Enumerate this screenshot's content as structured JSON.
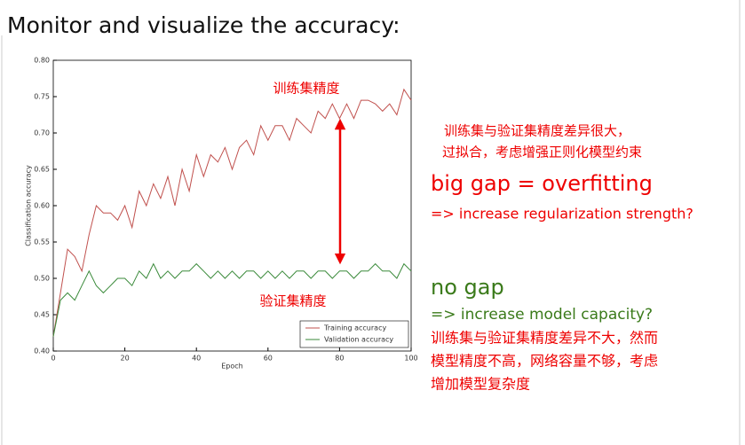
{
  "slide": {
    "title": "Monitor and visualize the accuracy:",
    "overfit": {
      "note_lines": [
        "训练集与验证集精度差异很大，",
        "过拟合，考虑增强正则化模型约束"
      ],
      "heading": "big gap = overfitting",
      "action": "=> increase regularization strength?"
    },
    "nogap": {
      "heading": "no gap",
      "action": "=> increase model capacity?",
      "note_lines": [
        "训练集与验证集精度差异不大，然而",
        "模型精度不高，网络容量不够，考虑",
        "增加模型复杂度"
      ]
    }
  },
  "chart_data": {
    "type": "line",
    "x_label": "Epoch",
    "y_label": "Classification accuracy",
    "annotations": [
      "训练集精度",
      "验证集精度"
    ],
    "x": [
      0,
      2,
      4,
      6,
      8,
      10,
      12,
      14,
      16,
      18,
      20,
      22,
      24,
      26,
      28,
      30,
      32,
      34,
      36,
      38,
      40,
      42,
      44,
      46,
      48,
      50,
      52,
      54,
      56,
      58,
      60,
      62,
      64,
      66,
      68,
      70,
      72,
      74,
      76,
      78,
      80,
      82,
      84,
      86,
      88,
      90,
      92,
      94,
      96,
      98,
      100
    ],
    "series": [
      {
        "name": "Training accuracy",
        "color": "#c0504d",
        "values": [
          0.42,
          0.48,
          0.54,
          0.53,
          0.51,
          0.56,
          0.6,
          0.59,
          0.59,
          0.58,
          0.6,
          0.57,
          0.62,
          0.6,
          0.63,
          0.61,
          0.64,
          0.6,
          0.65,
          0.62,
          0.67,
          0.64,
          0.67,
          0.66,
          0.68,
          0.65,
          0.68,
          0.69,
          0.67,
          0.71,
          0.69,
          0.71,
          0.71,
          0.69,
          0.72,
          0.71,
          0.7,
          0.73,
          0.72,
          0.74,
          0.72,
          0.74,
          0.72,
          0.745,
          0.745,
          0.74,
          0.73,
          0.74,
          0.725,
          0.76,
          0.745
        ]
      },
      {
        "name": "Validation accuracy",
        "color": "#3a8a3a",
        "values": [
          0.42,
          0.47,
          0.48,
          0.47,
          0.49,
          0.51,
          0.49,
          0.48,
          0.49,
          0.5,
          0.5,
          0.49,
          0.51,
          0.5,
          0.52,
          0.5,
          0.51,
          0.5,
          0.51,
          0.51,
          0.52,
          0.51,
          0.5,
          0.51,
          0.5,
          0.51,
          0.5,
          0.51,
          0.51,
          0.5,
          0.51,
          0.5,
          0.51,
          0.5,
          0.51,
          0.51,
          0.5,
          0.51,
          0.51,
          0.5,
          0.51,
          0.51,
          0.5,
          0.51,
          0.51,
          0.52,
          0.51,
          0.51,
          0.5,
          0.52,
          0.51
        ]
      }
    ],
    "xlim": [
      0,
      100
    ],
    "xticks": [
      0,
      20,
      40,
      60,
      80,
      100
    ],
    "ylim": [
      0.4,
      0.8
    ],
    "yticks": [
      {
        "value": 0.4,
        "label": "0.40"
      },
      0.45,
      {
        "value": 0.5,
        "label": "0.50"
      },
      0.55,
      {
        "value": 0.6,
        "label": "0.60"
      },
      0.65,
      {
        "value": 0.7,
        "label": "0.70"
      },
      0.75,
      {
        "value": 0.8,
        "label": "0.80"
      }
    ],
    "legend": "lower right"
  }
}
